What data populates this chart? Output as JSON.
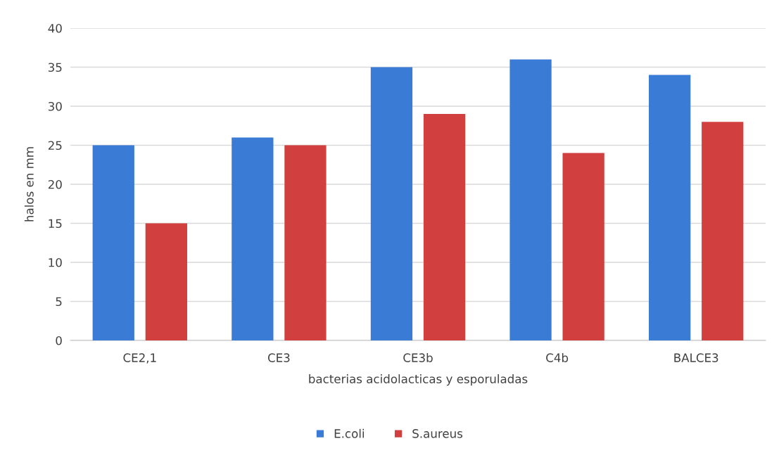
{
  "chart_data": {
    "type": "bar",
    "xlabel": "bacterias acidolacticas y esporuladas",
    "ylabel": "halos en mm",
    "categories": [
      "CE2,1",
      "CE3",
      "CE3b",
      "C4b",
      "BALCE3"
    ],
    "series": [
      {
        "name": "E.coli",
        "color": "#3a7bd5",
        "values": [
          25,
          26,
          35,
          36,
          34
        ]
      },
      {
        "name": "S.aureus",
        "color": "#d23f3f",
        "values": [
          15,
          25,
          29,
          24,
          28
        ]
      }
    ],
    "ylim": [
      0,
      40
    ],
    "yticks": [
      0,
      5,
      10,
      15,
      20,
      25,
      30,
      35,
      40
    ],
    "grid": "y",
    "legend": "bottom"
  }
}
